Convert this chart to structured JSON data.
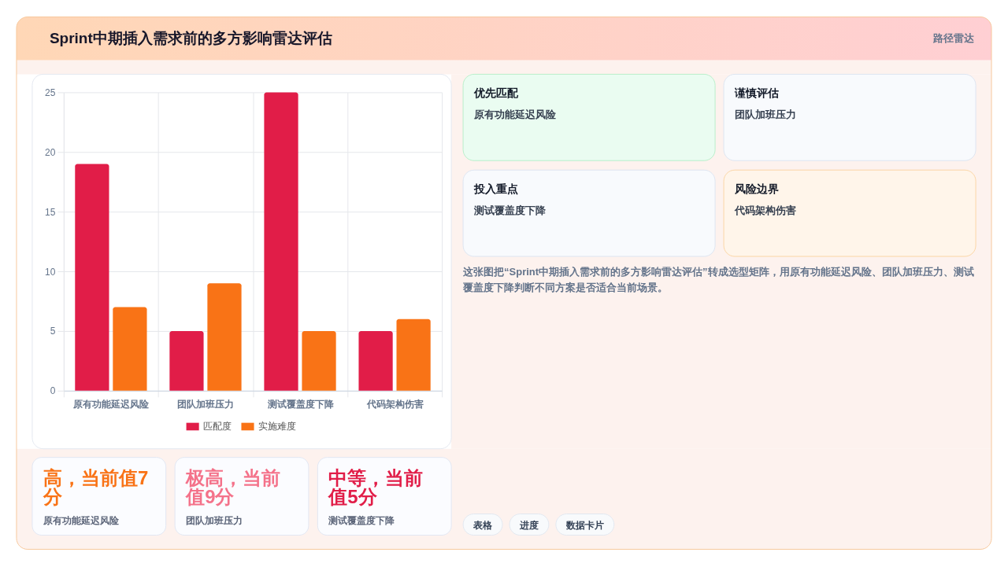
{
  "chart_data": [
    {
      "type": "other",
      "title": "Sprint中期插入需求前的多方影响雷达评估",
      "annotations": [
        "路径雷达"
      ]
    },
    {
      "type": "bar",
      "categories": [
        "原有功能延迟风险",
        "团队加班压力",
        "测试覆盖度下降",
        "代码架构伤害"
      ],
      "series": [
        {
          "name": "匹配度",
          "color": "#e11d48",
          "values": [
            19,
            5,
            25,
            5
          ]
        },
        {
          "name": "实施难度",
          "color": "#f97316",
          "values": [
            7,
            9,
            5,
            6
          ]
        }
      ],
      "ylim": [
        0,
        25
      ],
      "yticks": [
        0,
        5,
        10,
        15,
        20,
        25
      ],
      "grid": true,
      "legend": "bottom"
    },
    {
      "type": "other",
      "annotations": [
        "高，当前值7分",
        "原有功能延迟风险",
        "极高，当前值9分",
        "团队加班压力",
        "中等，当前值5分",
        "测试覆盖度下降"
      ],
      "colors": [
        "#f97316",
        "#f4728a",
        "#e11d48"
      ]
    },
    {
      "type": "other",
      "annotations": [
        "优先匹配",
        "原有功能延迟风险",
        "谨慎评估",
        "团队加班压力",
        "投入重点",
        "测试覆盖度下降",
        "风险边界",
        "代码架构伤害"
      ]
    },
    {
      "type": "other",
      "annotations": [
        "这张图把“Sprint中期插入需求前的多方影响雷达评估”转成选型矩阵，用原有功能延迟风险、团队加班压力、测试覆盖度下降判断不同方案是否适合当前场景。",
        "表格",
        "进度",
        "数据卡片"
      ]
    }
  ]
}
